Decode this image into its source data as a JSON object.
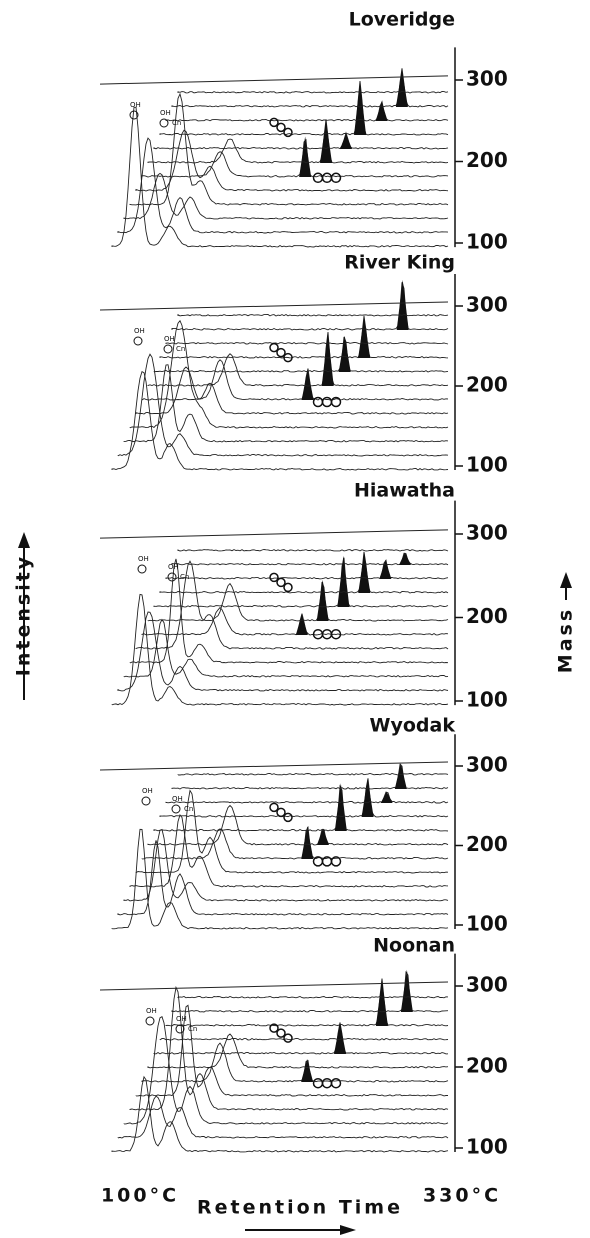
{
  "chart_data": [
    {
      "type": "waterfall",
      "title": "Loveridge",
      "ylim": [
        95,
        340
      ],
      "yticks": [
        100,
        200,
        300
      ]
    },
    {
      "type": "waterfall",
      "title": "River King",
      "ylim": [
        95,
        340
      ],
      "yticks": [
        100,
        200,
        300
      ]
    },
    {
      "type": "waterfall",
      "title": "Hiawatha",
      "ylim": [
        95,
        340
      ],
      "yticks": [
        100,
        200,
        300
      ]
    },
    {
      "type": "waterfall",
      "title": "Wyodak",
      "ylim": [
        95,
        340
      ],
      "yticks": [
        100,
        200,
        300
      ]
    },
    {
      "type": "waterfall",
      "title": "Noonan",
      "ylim": [
        95,
        340
      ],
      "yticks": [
        100,
        200,
        300
      ]
    }
  ],
  "axes": {
    "y_left": "Intensity",
    "y_right": "Mass",
    "x": "Retention Time",
    "x_start": "100°C",
    "x_end": "330°C"
  },
  "structure_labels": {
    "hydroxyl": "OH",
    "alkyl": "Cn"
  }
}
